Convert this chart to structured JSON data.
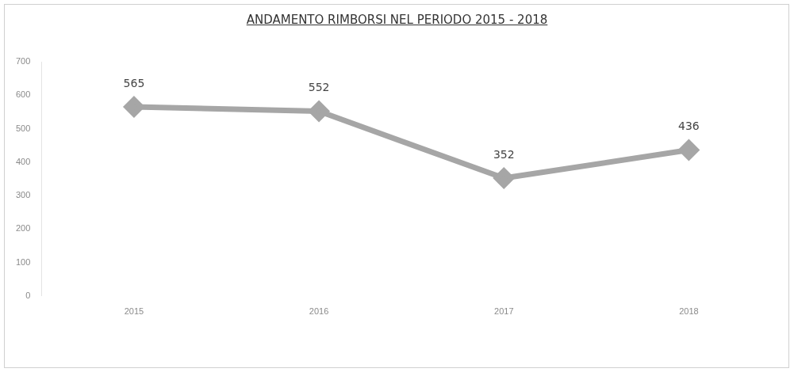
{
  "chart_data": {
    "type": "line",
    "title": "ANDAMENTO RIMBORSI  NEL PERIODO 2015 - 2018",
    "categories": [
      "2015",
      "2016",
      "2017",
      "2018"
    ],
    "values": [
      565,
      552,
      352,
      436
    ],
    "color": "#a6a6a6",
    "ylim": [
      0,
      700
    ],
    "yticks": [
      0,
      100,
      200,
      300,
      400,
      500,
      600,
      700
    ],
    "grid": false,
    "legend": false,
    "marker": "diamond",
    "line_style": "solid",
    "data_labels": true
  }
}
